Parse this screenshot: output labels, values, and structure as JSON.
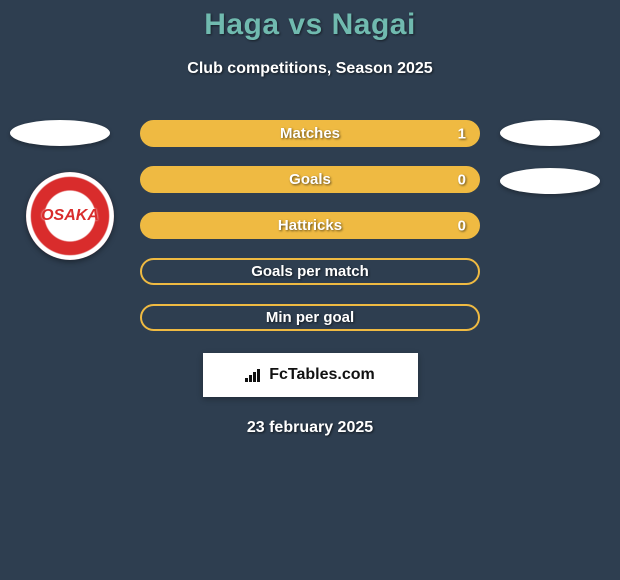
{
  "title": "Haga vs Nagai",
  "subtitle": "Club competitions, Season 2025",
  "brand": "FcTables.com",
  "date": "23 february 2025",
  "logo_text": "OSAKA",
  "colors": {
    "full": {
      "bg": "#efba42",
      "border": "#efba42"
    },
    "empty": {
      "bg": "transparent",
      "border": "#efba42"
    }
  },
  "stats": [
    {
      "label": "Matches",
      "value": "1",
      "filled": true
    },
    {
      "label": "Goals",
      "value": "0",
      "filled": true
    },
    {
      "label": "Hattricks",
      "value": "0",
      "filled": true
    },
    {
      "label": "Goals per match",
      "value": "",
      "filled": false
    },
    {
      "label": "Min per goal",
      "value": "",
      "filled": false
    }
  ]
}
